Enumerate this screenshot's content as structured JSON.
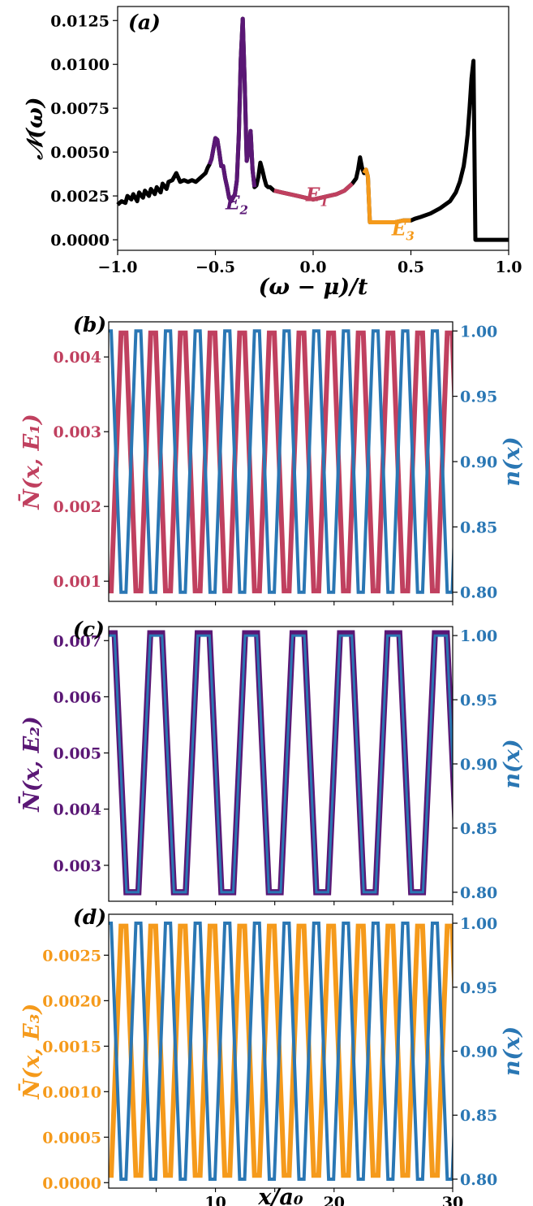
{
  "chart_data": [
    {
      "panel": "(a)",
      "type": "line",
      "xlabel": "(ω − μ)/t",
      "ylabel": "𝒩(ω)",
      "xlim": [
        -1.0,
        1.0
      ],
      "ylim": [
        -0.0006,
        0.0133
      ],
      "xticks": [
        -1.0,
        -0.5,
        0.0,
        0.5,
        1.0
      ],
      "xtick_labels": [
        "−1.0",
        "−0.5",
        "0.0",
        "0.5",
        "1.0"
      ],
      "yticks": [
        0.0,
        0.0025,
        0.005,
        0.0075,
        0.01,
        0.0125
      ],
      "ytick_labels": [
        "0.0000",
        "0.0025",
        "0.0050",
        "0.0075",
        "0.0100",
        "0.0125"
      ],
      "colors": {
        "base": "#000000",
        "E1": "#c0405f",
        "E2": "#5a1775",
        "E3": "#f59a1b"
      },
      "series": [
        {
          "x": [
            -1.0,
            -0.98,
            -0.96,
            -0.95,
            -0.93,
            -0.92,
            -0.9,
            -0.89,
            -0.87,
            -0.86,
            -0.84,
            -0.83,
            -0.81,
            -0.8,
            -0.78,
            -0.77,
            -0.75,
            -0.74,
            -0.72,
            -0.7,
            -0.68,
            -0.66,
            -0.64,
            -0.62,
            -0.6,
            -0.58,
            -0.56,
            -0.55,
            -0.54,
            -0.53,
            -0.52,
            -0.51,
            -0.5,
            -0.49,
            -0.48,
            -0.47,
            -0.46,
            -0.45,
            -0.44,
            -0.43,
            -0.42,
            -0.41,
            -0.4,
            -0.39,
            -0.38,
            -0.37,
            -0.36,
            -0.35,
            -0.34,
            -0.33,
            -0.32,
            -0.31,
            -0.3,
            -0.29,
            -0.28,
            -0.27,
            -0.26,
            -0.25,
            -0.24,
            -0.23,
            -0.22,
            -0.21,
            -0.2,
            -0.16,
            -0.12,
            -0.08,
            -0.04,
            0.0,
            0.04,
            0.08,
            0.12,
            0.16,
            0.2,
            0.22,
            0.23,
            0.24,
            0.25,
            0.26,
            0.27,
            0.28,
            0.29,
            0.3,
            0.34,
            0.38,
            0.42,
            0.46,
            0.5,
            0.52,
            0.55,
            0.6,
            0.65,
            0.7,
            0.73,
            0.75,
            0.77,
            0.78,
            0.79,
            0.8,
            0.81,
            0.82,
            0.83,
            0.85,
            0.9,
            0.95,
            1.0
          ],
          "y": [
            0.002,
            0.0022,
            0.0021,
            0.0025,
            0.0023,
            0.0026,
            0.0022,
            0.0027,
            0.0024,
            0.0028,
            0.0025,
            0.0029,
            0.0026,
            0.003,
            0.0027,
            0.0032,
            0.0029,
            0.0033,
            0.0034,
            0.0038,
            0.0033,
            0.0034,
            0.0033,
            0.0034,
            0.0033,
            0.0035,
            0.0037,
            0.0038,
            0.0041,
            0.0043,
            0.0046,
            0.0052,
            0.0058,
            0.0057,
            0.005,
            0.0042,
            0.0042,
            0.0035,
            0.003,
            0.0024,
            0.0022,
            0.0024,
            0.0026,
            0.0034,
            0.006,
            0.0103,
            0.0126,
            0.009,
            0.0045,
            0.005,
            0.0062,
            0.004,
            0.003,
            0.0031,
            0.0036,
            0.0044,
            0.004,
            0.0035,
            0.0031,
            0.003,
            0.003,
            0.0029,
            0.0028,
            0.0027,
            0.0026,
            0.0025,
            0.0024,
            0.0023,
            0.0024,
            0.0025,
            0.0026,
            0.0028,
            0.0032,
            0.0035,
            0.004,
            0.0047,
            0.0041,
            0.0038,
            0.004,
            0.0036,
            0.001,
            0.001,
            0.001,
            0.001,
            0.001,
            0.0011,
            0.0011,
            0.0012,
            0.0013,
            0.0015,
            0.0018,
            0.0022,
            0.0027,
            0.0033,
            0.0042,
            0.005,
            0.006,
            0.0075,
            0.0092,
            0.0102,
            0.0,
            0.0,
            0.0,
            0.0,
            0.0
          ]
        },
        {
          "name": "E₂",
          "x": [
            -0.53,
            -0.52,
            -0.51,
            -0.5,
            -0.49,
            -0.48,
            -0.47,
            -0.46,
            -0.45,
            -0.44,
            -0.43,
            -0.42,
            -0.41,
            -0.4,
            -0.39,
            -0.38,
            -0.37,
            -0.36,
            -0.35,
            -0.34,
            -0.33,
            -0.32,
            -0.31,
            -0.3
          ],
          "y": [
            0.0043,
            0.0046,
            0.0052,
            0.0058,
            0.0057,
            0.005,
            0.0042,
            0.0042,
            0.0035,
            0.003,
            0.0024,
            0.0022,
            0.0024,
            0.0026,
            0.0034,
            0.006,
            0.0103,
            0.0126,
            0.009,
            0.0045,
            0.005,
            0.0062,
            0.004,
            0.003
          ]
        },
        {
          "name": "E₁",
          "x": [
            -0.2,
            -0.16,
            -0.12,
            -0.08,
            -0.04,
            0.0,
            0.04,
            0.08,
            0.12,
            0.16,
            0.2
          ],
          "y": [
            0.0028,
            0.0027,
            0.0026,
            0.0025,
            0.0024,
            0.0023,
            0.0024,
            0.0025,
            0.0026,
            0.0028,
            0.0032
          ]
        },
        {
          "name": "E₃",
          "x": [
            0.26,
            0.27,
            0.28,
            0.29,
            0.3,
            0.34,
            0.38,
            0.42,
            0.46,
            0.5
          ],
          "y": [
            0.0038,
            0.004,
            0.0036,
            0.001,
            0.001,
            0.001,
            0.001,
            0.001,
            0.0011,
            0.0011
          ]
        }
      ],
      "labels": [
        {
          "text": "E",
          "sub": "2",
          "x": -0.39,
          "y": 0.00175,
          "color": "#5a1775"
        },
        {
          "text": "E",
          "sub": "1",
          "x": 0.02,
          "y": 0.0022,
          "color": "#c0405f"
        },
        {
          "text": "E",
          "sub": "3",
          "x": 0.46,
          "y": 0.00025,
          "color": "#f59a1b"
        }
      ]
    },
    {
      "panel": "(b)",
      "type": "line",
      "xlim": [
        1,
        30
      ],
      "ylabel_left": "N̄(x, E₁)",
      "ylabel_right": "n(x)",
      "ylim_left": [
        0.00073,
        0.00447
      ],
      "ylim_right": [
        0.793,
        1.007
      ],
      "yticks_left": [
        0.001,
        0.002,
        0.003,
        0.004
      ],
      "ytick_labels_left": [
        "0.001",
        "0.002",
        "0.003",
        "0.004"
      ],
      "yticks_right": [
        0.8,
        0.85,
        0.9,
        0.95,
        1.0
      ],
      "ytick_labels_right": [
        "0.80",
        "0.85",
        "0.90",
        "0.95",
        "1.00"
      ],
      "left": {
        "color": "#c0405f",
        "low": 0.00087,
        "high": 0.00432,
        "period": 2.5,
        "plateau": 0.42,
        "start_phase": "low"
      },
      "right": {
        "color": "#2a77b4",
        "low": 0.8,
        "high": 1.0,
        "period": 2.5,
        "plateau": 0.42,
        "start_phase": "high"
      }
    },
    {
      "panel": "(c)",
      "type": "line",
      "xlim": [
        1,
        30
      ],
      "ylabel_left": "N̄(x, E₂)",
      "ylabel_right": "n(x)",
      "ylim_left": [
        0.00236,
        0.00725
      ],
      "ylim_right": [
        0.793,
        1.007
      ],
      "yticks_left": [
        0.003,
        0.004,
        0.005,
        0.006,
        0.007
      ],
      "ytick_labels_left": [
        "0.003",
        "0.004",
        "0.005",
        "0.006",
        "0.007"
      ],
      "yticks_right": [
        0.8,
        0.85,
        0.9,
        0.95,
        1.0
      ],
      "ytick_labels_right": [
        "0.80",
        "0.85",
        "0.90",
        "0.95",
        "1.00"
      ],
      "left": {
        "color": "#5a1775",
        "low": 0.00252,
        "high": 0.00713,
        "period": 4.0,
        "plateau": 1.0,
        "start_phase": "high"
      },
      "right": {
        "color": "#2a77b4",
        "low": 0.8,
        "high": 1.0,
        "period": 4.0,
        "plateau": 1.0,
        "start_phase": "high"
      }
    },
    {
      "panel": "(d)",
      "type": "line",
      "xlim": [
        1,
        30
      ],
      "xlabel": "x/a₀",
      "xticks": [
        10,
        20,
        30
      ],
      "xtick_labels": [
        "10",
        "20",
        "30"
      ],
      "ylabel_left": "N̄(x, E₃)",
      "ylabel_right": "n(x)",
      "ylim_left": [
        -6e-05,
        0.00295
      ],
      "ylim_right": [
        0.793,
        1.007
      ],
      "yticks_left": [
        0.0,
        0.0005,
        0.001,
        0.0015,
        0.002,
        0.0025
      ],
      "ytick_labels_left": [
        "0.0000",
        "0.0005",
        "0.0010",
        "0.0015",
        "0.0020",
        "0.0025"
      ],
      "yticks_right": [
        0.8,
        0.85,
        0.9,
        0.95,
        1.0
      ],
      "ytick_labels_right": [
        "0.80",
        "0.85",
        "0.90",
        "0.95",
        "1.00"
      ],
      "left": {
        "color": "#f59a1b",
        "low": 8e-05,
        "high": 0.00282,
        "period": 2.5,
        "plateau": 0.42,
        "start_phase": "low"
      },
      "right": {
        "color": "#2a77b4",
        "low": 0.8,
        "high": 1.0,
        "period": 2.5,
        "plateau": 0.42,
        "start_phase": "high"
      }
    }
  ]
}
